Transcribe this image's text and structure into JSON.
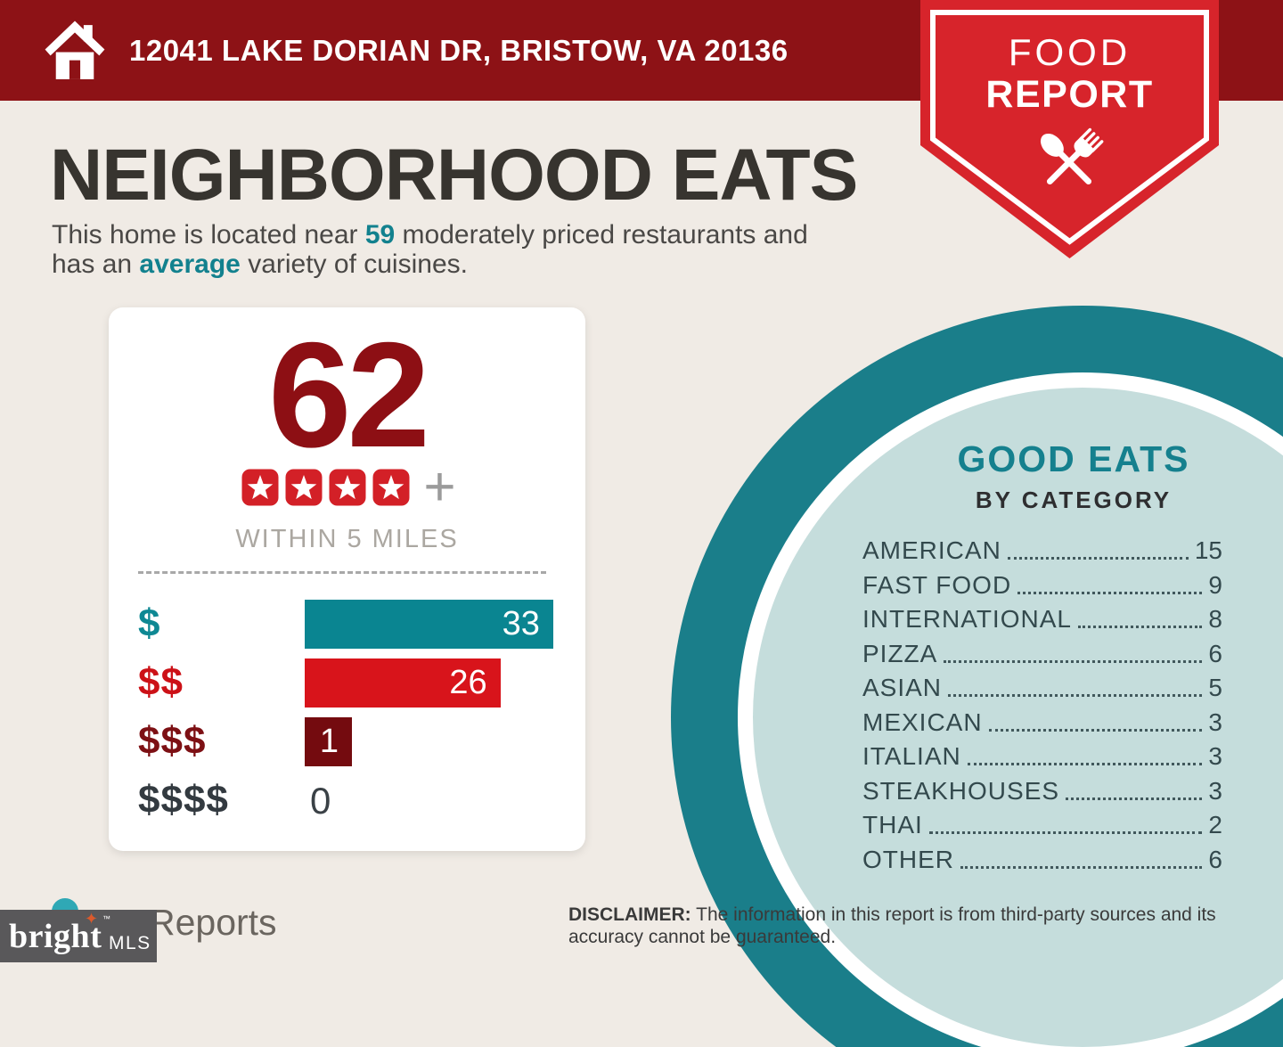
{
  "banner": {
    "address": "12041 LAKE DORIAN DR, BRISTOW, VA 20136"
  },
  "ribbon": {
    "line1": "FOOD",
    "line2": "REPORT"
  },
  "page": {
    "title": "NEIGHBORHOOD EATS",
    "subtitle_line1": [
      {
        "text": "This home is located near "
      },
      {
        "text": "59",
        "highlight": true
      },
      {
        "text": " moderately priced restaurants and"
      }
    ],
    "subtitle_line2": [
      {
        "text": "has an "
      },
      {
        "text": "average",
        "highlight": true
      },
      {
        "text": " variety of cuisines."
      }
    ]
  },
  "score_card": {
    "score": "62",
    "stars": 4,
    "stars_plus": "+",
    "radius_label": "WITHIN 5 MILES",
    "price_bars": [
      {
        "label": "$",
        "value": 33,
        "bar_color": "#0A8591",
        "label_color": "#0E8893"
      },
      {
        "label": "$$",
        "value": 26,
        "bar_color": "#D8141B",
        "label_color": "#CC1117"
      },
      {
        "label": "$$$",
        "value": 1,
        "bar_color": "#740B0F",
        "label_color": "#7D1014"
      },
      {
        "label": "$$$$",
        "value": 0,
        "bar_color": null,
        "label_color": "#333A40"
      }
    ]
  },
  "good_eats": {
    "title": "GOOD EATS",
    "subtitle": "BY CATEGORY",
    "categories": [
      {
        "label": "AMERICAN",
        "value": 15
      },
      {
        "label": "FAST FOOD",
        "value": 9
      },
      {
        "label": "INTERNATIONAL",
        "value": 8
      },
      {
        "label": "PIZZA",
        "value": 6
      },
      {
        "label": "ASIAN",
        "value": 5
      },
      {
        "label": "MEXICAN",
        "value": 3
      },
      {
        "label": "ITALIAN",
        "value": 3
      },
      {
        "label": "STEAKHOUSES",
        "value": 3
      },
      {
        "label": "THAI",
        "value": 2
      },
      {
        "label": "OTHER",
        "value": 6
      }
    ]
  },
  "disclaimer": {
    "label": "DISCLAIMER:",
    "line1_rest": " The information in this report is from third-party sources and its",
    "line2": "accuracy cannot be guaranteed."
  },
  "footer": {
    "partial_logo_text": "Reports",
    "brand": "bright",
    "brand_tm": "™",
    "brand_star": "✦",
    "brand_suffix": "MLS"
  },
  "icons": {
    "banner": "home-icon",
    "ribbon": "fork-and-spoon-icon",
    "rating": "star-icon",
    "rating_plus": "plus-icon",
    "footer": "logo-dot-icon"
  },
  "colors": {
    "banner_red": "#8D1216",
    "ribbon_red": "#D7242B",
    "background_cream": "#F0EBE5",
    "score_red": "#8D0F14",
    "star_badge_red": "#D32027",
    "accent_teal": "#12818E",
    "bar_teal": "#0A8591",
    "bar_red": "#D8141B",
    "bar_dark_red": "#740B0F",
    "circle_ring_teal": "#1A7E8A",
    "circle_fill_light_teal": "#C5DDDC",
    "list_text": "#33494D"
  },
  "chart_data": [
    {
      "type": "bar",
      "orientation": "horizontal",
      "title": "Restaurant count by price level",
      "categories": [
        "$",
        "$$",
        "$$$",
        "$$$$"
      ],
      "values": [
        33,
        26,
        1,
        0
      ],
      "value_labels_inside_bars": true,
      "annotations": {
        "total_count": 62,
        "rating_stars": 4,
        "rating_suffix": "+",
        "scope": "WITHIN 5 MILES"
      },
      "xlim": [
        0,
        33
      ],
      "grid": false,
      "legend": "none"
    },
    {
      "type": "table",
      "title": "GOOD EATS BY CATEGORY",
      "categories": [
        "AMERICAN",
        "FAST FOOD",
        "INTERNATIONAL",
        "PIZZA",
        "ASIAN",
        "MEXICAN",
        "ITALIAN",
        "STEAKHOUSES",
        "THAI",
        "OTHER"
      ],
      "values": [
        15,
        9,
        8,
        6,
        5,
        3,
        3,
        3,
        2,
        6
      ]
    }
  ]
}
